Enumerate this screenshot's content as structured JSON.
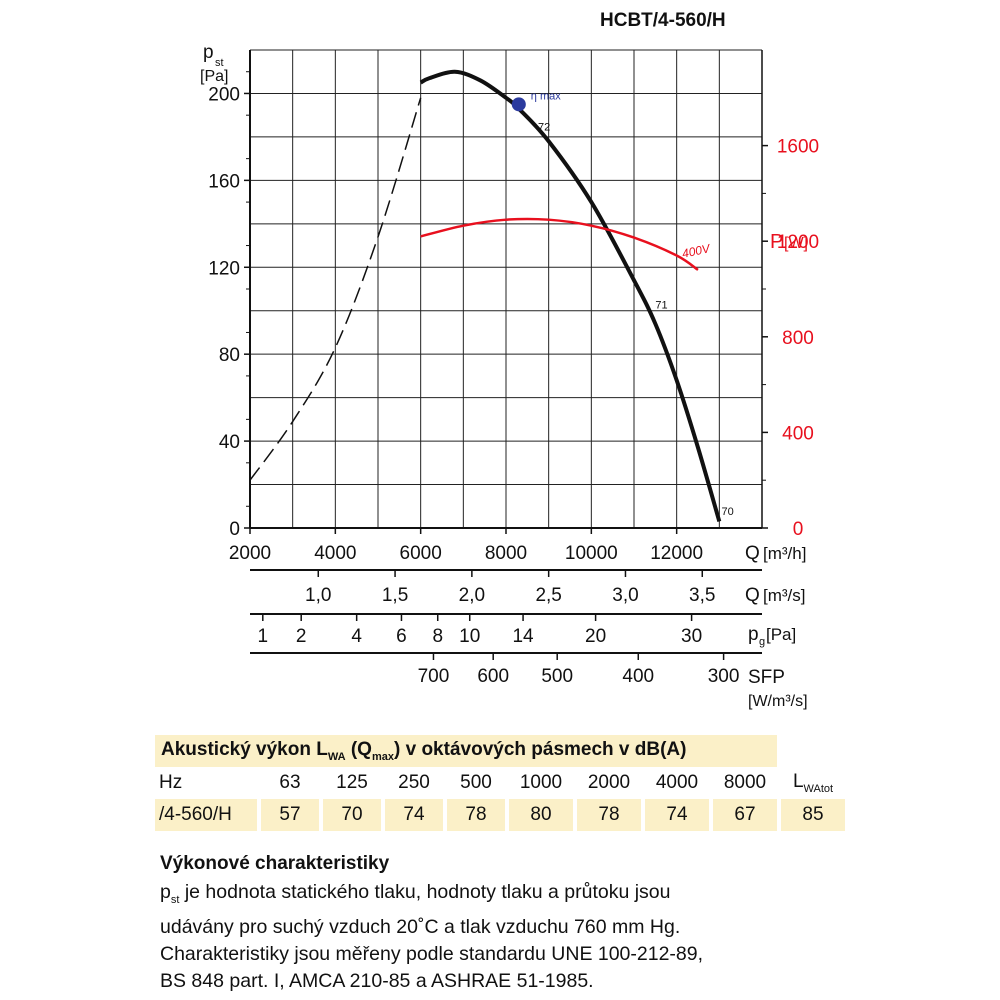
{
  "title": "HCBT/4-560/H",
  "chart_data": {
    "type": "line",
    "x_unit": "Q [m³/h]",
    "xlim": [
      2000,
      14000
    ],
    "ylim": [
      0,
      220
    ],
    "y_ticks": [
      "0",
      "40",
      "80",
      "120",
      "160",
      "200"
    ],
    "y2lim": [
      0,
      2000
    ],
    "y2_ticks": [
      "0",
      "400",
      "800",
      "1200",
      "1600"
    ],
    "grid": true,
    "xlabel_q_main": "Q",
    "xlabel_q_unit": "[m³/h]",
    "ylabel_main": "p",
    "ylabel_sub": "st",
    "ylabel_unit": "[Pa]",
    "y2label_main": "P",
    "y2label_unit": "[W]",
    "axis_q_m3h": {
      "ticks": [
        {
          "v": 2000,
          "t": "2000"
        },
        {
          "v": 4000,
          "t": "4000"
        },
        {
          "v": 6000,
          "t": "6000"
        },
        {
          "v": 8000,
          "t": "8000"
        },
        {
          "v": 10000,
          "t": "10000"
        },
        {
          "v": 12000,
          "t": "12000"
        }
      ]
    },
    "axis_q_m3s": {
      "label_main": "Q",
      "label_unit": "[m³/s]",
      "ticks": [
        {
          "v": 3600,
          "t": "1,0"
        },
        {
          "v": 5400,
          "t": "1,5"
        },
        {
          "v": 7200,
          "t": "2,0"
        },
        {
          "v": 9000,
          "t": "2,5"
        },
        {
          "v": 10800,
          "t": "3,0"
        },
        {
          "v": 12600,
          "t": "3,5"
        }
      ]
    },
    "axis_pg": {
      "label_main": "p",
      "label_sub": "g",
      "label_unit": "[Pa]",
      "ticks": [
        {
          "v": 2300,
          "t": "1"
        },
        {
          "v": 3200,
          "t": "2"
        },
        {
          "v": 4500,
          "t": "4"
        },
        {
          "v": 5550,
          "t": "6"
        },
        {
          "v": 6400,
          "t": "8"
        },
        {
          "v": 7150,
          "t": "10"
        },
        {
          "v": 8400,
          "t": "14"
        },
        {
          "v": 10100,
          "t": "20"
        },
        {
          "v": 12350,
          "t": "30"
        }
      ]
    },
    "axis_sfp": {
      "label_main": "SFP",
      "label_unit": "[W/m³/s]",
      "ticks": [
        {
          "v": 6300,
          "t": "700"
        },
        {
          "v": 7700,
          "t": "600"
        },
        {
          "v": 9200,
          "t": "500"
        },
        {
          "v": 11100,
          "t": "400"
        },
        {
          "v": 13100,
          "t": "300"
        }
      ]
    },
    "series": [
      {
        "role": "pressure_unstable",
        "style": "dashed",
        "color": "#111111",
        "x": [
          2000,
          3000,
          4000,
          5000,
          6000
        ],
        "y": [
          22,
          49,
          83,
          134,
          198
        ]
      },
      {
        "role": "pressure",
        "color": "#111111",
        "x": [
          6000,
          6200,
          6800,
          7400,
          8000,
          8300,
          9000,
          10000,
          11000,
          11500,
          12000,
          12500,
          13000
        ],
        "y": [
          205,
          207,
          210,
          206,
          198,
          193,
          178,
          150,
          114,
          94,
          68,
          37,
          3
        ]
      },
      {
        "role": "power",
        "name": "400V",
        "color": "#e8101e",
        "axis": "y2",
        "x": [
          6000,
          7000,
          8000,
          9000,
          10000,
          11000,
          12000,
          12500
        ],
        "y": [
          1220,
          1265,
          1290,
          1290,
          1265,
          1215,
          1140,
          1080
        ]
      }
    ],
    "annotations": [
      {
        "text": "η max",
        "x": 8300,
        "y": 195,
        "type": "marker",
        "color": "#2b3a9e"
      },
      {
        "text": "72",
        "x": 8750,
        "y": 183
      },
      {
        "text": "71",
        "x": 11500,
        "y": 101
      },
      {
        "text": "70",
        "x": 13050,
        "y": 6
      }
    ]
  },
  "acoustic": {
    "heading_a": "Akustický výkon L",
    "heading_sub1": "WA",
    "heading_b": " (Q",
    "heading_sub2": "max",
    "heading_c": ") v oktávových pásmech v dB(A)",
    "hz_label": "Hz",
    "frequencies": [
      "63",
      "125",
      "250",
      "500",
      "1000",
      "2000",
      "4000",
      "8000"
    ],
    "total_label_main": "L",
    "total_label_sub": "WAtot",
    "row_label": "/4-560/H",
    "values": [
      "57",
      "70",
      "74",
      "78",
      "80",
      "78",
      "74",
      "67"
    ],
    "total_value": "85"
  },
  "description": {
    "title": "Výkonové charakteristiky",
    "p_main": "p",
    "p_sub": "st",
    "text1": " je hodnota statického tlaku, hodnoty tlaku a průtoku jsou",
    "line2": "udávány pro suchý vzduch 20˚C a tlak vzduchu 760 mm Hg.",
    "line3": "Charakteristiky jsou měřeny podle standardu UNE 100-212-89,",
    "line4": "BS 848 part. I, AMCA 210-85 a ASHRAE 51-1985."
  }
}
